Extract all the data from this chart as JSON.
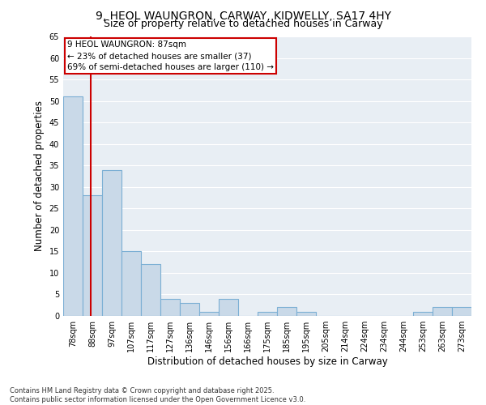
{
  "title_line1": "9, HEOL WAUNGRON, CARWAY, KIDWELLY, SA17 4HY",
  "title_line2": "Size of property relative to detached houses in Carway",
  "xlabel": "Distribution of detached houses by size in Carway",
  "ylabel": "Number of detached properties",
  "categories": [
    "78sqm",
    "88sqm",
    "97sqm",
    "107sqm",
    "117sqm",
    "127sqm",
    "136sqm",
    "146sqm",
    "156sqm",
    "166sqm",
    "175sqm",
    "185sqm",
    "195sqm",
    "205sqm",
    "214sqm",
    "224sqm",
    "234sqm",
    "244sqm",
    "253sqm",
    "263sqm",
    "273sqm"
  ],
  "values": [
    51,
    28,
    34,
    15,
    12,
    4,
    3,
    1,
    4,
    0,
    1,
    2,
    1,
    0,
    0,
    0,
    0,
    0,
    1,
    2,
    2
  ],
  "bar_color": "#c9d9e8",
  "bar_edge_color": "#7bafd4",
  "vline_color": "#cc0000",
  "annotation_text": "9 HEOL WAUNGRON: 87sqm\n← 23% of detached houses are smaller (37)\n69% of semi-detached houses are larger (110) →",
  "annotation_box_color": "#cc0000",
  "ylim": [
    0,
    65
  ],
  "yticks": [
    0,
    5,
    10,
    15,
    20,
    25,
    30,
    35,
    40,
    45,
    50,
    55,
    60,
    65
  ],
  "plot_bg_color": "#e8eef4",
  "footer_text": "Contains HM Land Registry data © Crown copyright and database right 2025.\nContains public sector information licensed under the Open Government Licence v3.0.",
  "title_fontsize": 10,
  "subtitle_fontsize": 9,
  "tick_fontsize": 7,
  "label_fontsize": 8.5,
  "annotation_fontsize": 7.5
}
